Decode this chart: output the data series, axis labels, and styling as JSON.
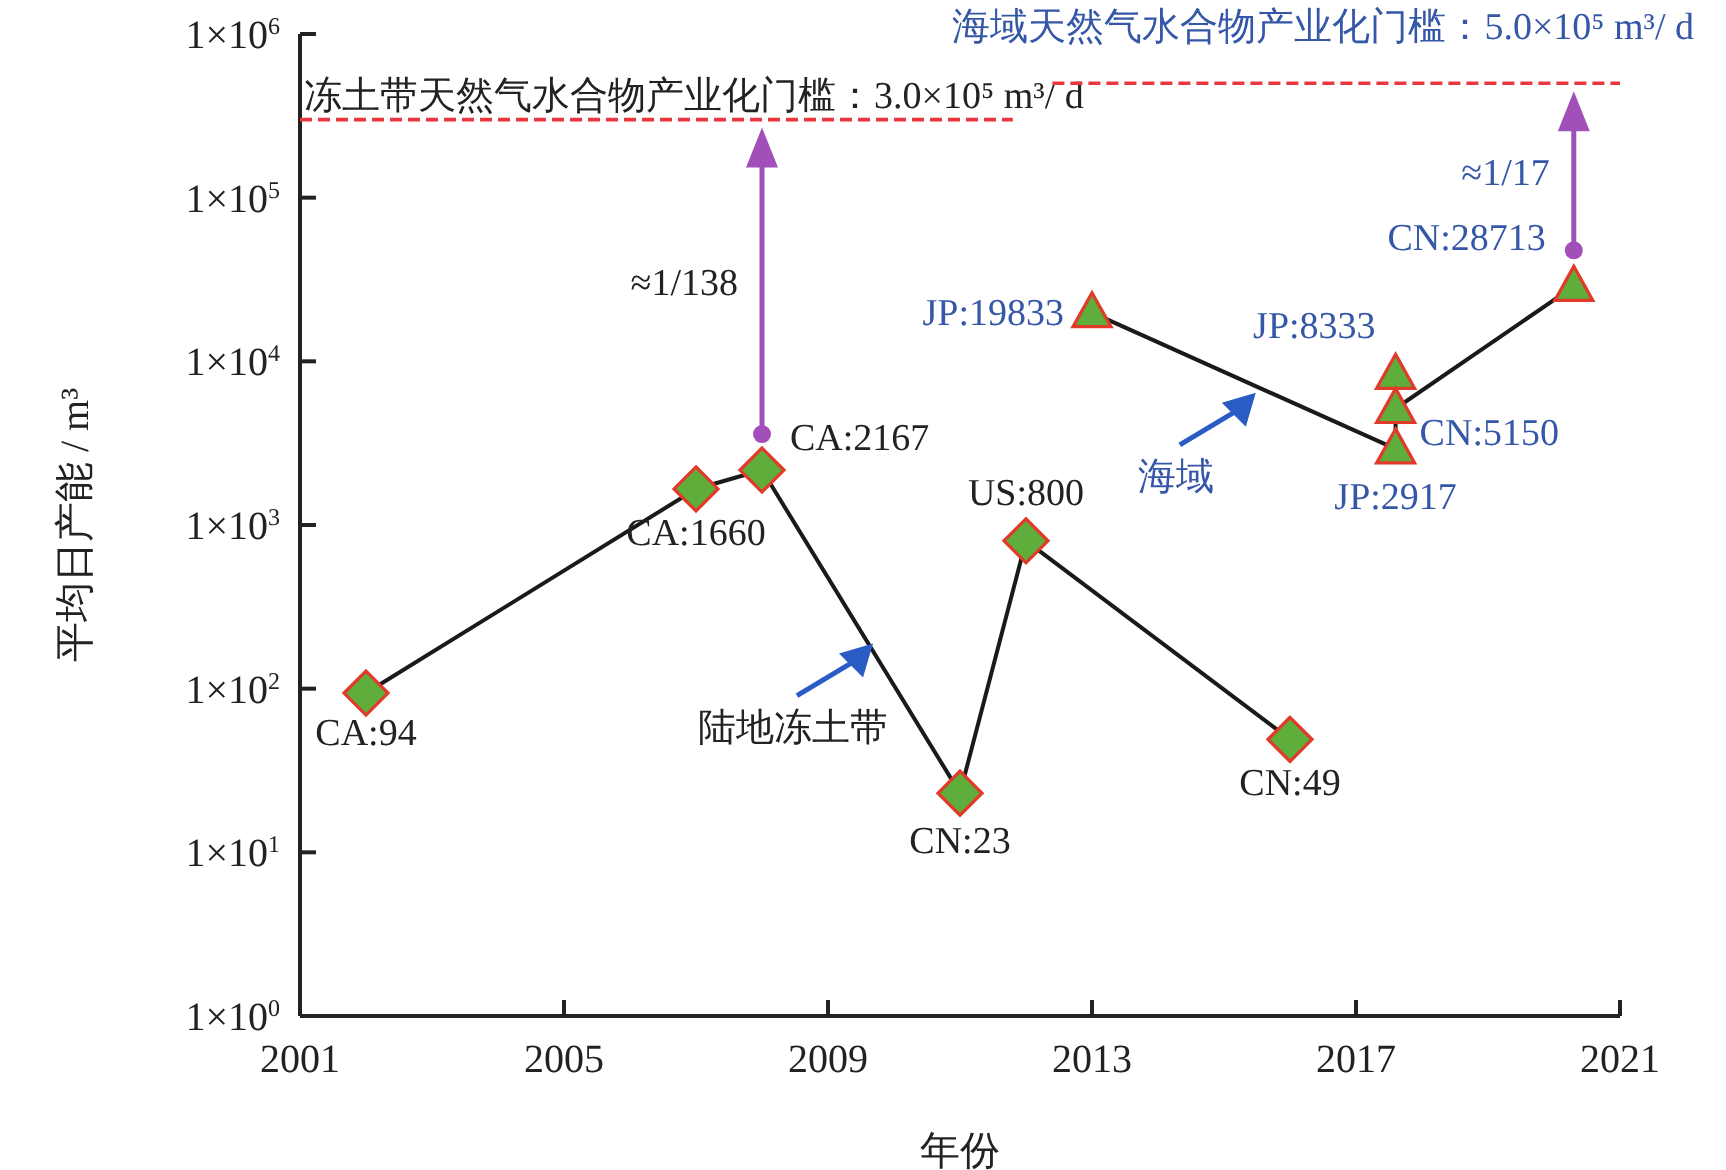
{
  "chart_data": {
    "type": "line",
    "xlabel": "年份",
    "ylabel": "平均日产能 / m³",
    "log": "y",
    "grid": false,
    "line_style": "solid",
    "xlim": [
      2001,
      2021
    ],
    "xticks": [
      2001,
      2005,
      2009,
      2013,
      2017,
      2021
    ],
    "ylim": [
      1,
      1000000
    ],
    "yticks": [
      {
        "value": 1,
        "label": "1×10$^{0}$"
      },
      {
        "value": 10,
        "label": "1×10$^{1}$"
      },
      {
        "value": 100,
        "label": "1×10$^{2}$"
      },
      {
        "value": 1000,
        "label": "1×10$^{3}$"
      },
      {
        "value": 10000,
        "label": "1×10$^{4}$"
      },
      {
        "value": 100000,
        "label": "1×10$^{5}$"
      },
      {
        "value": 1000000,
        "label": "1×10$^{6}$"
      }
    ],
    "series": [
      {
        "name": "陆地冻土带",
        "color": "#1a1a1a",
        "marker": "diamond",
        "x": [
          2002,
          2007,
          2008,
          2011,
          2012,
          2016
        ],
        "values": [
          94,
          1660,
          2167,
          23,
          800,
          49
        ],
        "value_labels": [
          "CA:94",
          "CA:1660",
          "CA:2167",
          "CN:23",
          "US:800",
          "CN:49"
        ]
      },
      {
        "name": "海域",
        "color": "#1a1a1a",
        "marker": "triangle",
        "x": [
          2013,
          2017.6,
          2017.6,
          2017.6,
          2020.3
        ],
        "values": [
          19833,
          2917,
          8333,
          5150,
          28713
        ],
        "value_labels": [
          "JP:19833",
          "JP:2917",
          "JP:8333",
          "CN:5150",
          "CN:28713"
        ]
      }
    ],
    "ref_lines": [
      {
        "axis": "y",
        "value": 300000,
        "label": "冻土带天然气水合物产业化门槛：3.0×10⁵ m³/ d",
        "color": "#e8383d",
        "line_style": "dashed"
      },
      {
        "axis": "y",
        "value": 500000,
        "label": "海域天然气水合物产业化门槛：5.0×10⁵ m³/ d",
        "color": "#e8383d",
        "line_style": "dashed"
      }
    ],
    "annotations": [
      "≈1/138",
      "≈1/17"
    ]
  }
}
